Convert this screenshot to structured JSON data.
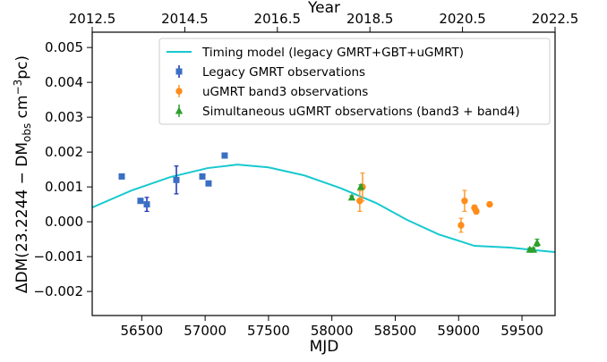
{
  "chart_data": {
    "type": "errorbar",
    "xlabel": "MJD",
    "x2label": "Year",
    "ylabel": {
      "pre": "ΔDM(23.2244 − DM",
      "sub": "obs",
      "mid": " cm",
      "sup": "−3",
      "post": "pc)"
    },
    "xlim": [
      56109,
      59761
    ],
    "xticks": [
      56500,
      57000,
      57500,
      58000,
      58500,
      59000,
      59500
    ],
    "x2lim": [
      2012.5,
      2022.5
    ],
    "x2ticks": [
      2012.5,
      2014.5,
      2016.5,
      2018.5,
      2020.5,
      2022.5
    ],
    "ylim": [
      -0.00269,
      0.00544
    ],
    "yticks": [
      {
        "value": -0.002,
        "label": "−0.002"
      },
      {
        "value": -0.001,
        "label": "−0.001"
      },
      {
        "value": 0,
        "label": "0.000"
      },
      {
        "value": 0.001,
        "label": "0.001"
      },
      {
        "value": 0.002,
        "label": "0.002"
      },
      {
        "value": 0.003,
        "label": "0.003"
      },
      {
        "value": 0.004,
        "label": "0.004"
      },
      {
        "value": 0.005,
        "label": "0.005"
      }
    ],
    "legend": "upper right",
    "series": [
      {
        "name": "Timing model (legacy GMRT+GBT+uGMRT)",
        "kind": "line",
        "color": "#17c9cf",
        "x": [
          56109,
          56420,
          56723,
          57020,
          57253,
          57500,
          57783,
          58065,
          58348,
          58595,
          58842,
          59124,
          59407,
          59618,
          59761
        ],
        "values": [
          0.00041,
          0.0009,
          0.00128,
          0.00154,
          0.00164,
          0.00156,
          0.00133,
          0.00097,
          0.00054,
          5e-05,
          -0.00036,
          -0.00069,
          -0.00074,
          -0.00082,
          -0.00087
        ]
      },
      {
        "name": "Legacy GMRT observations",
        "kind": "square",
        "color": "#3a6fc4",
        "ecolor": "#1a2fb0",
        "x": [
          56342,
          56490,
          56540,
          56773,
          56978,
          57027,
          57154
        ],
        "values": [
          0.0013,
          0.0006,
          0.0005,
          0.0012,
          0.0013,
          0.0011,
          0.0019
        ],
        "errors": [
          6e-05,
          7e-05,
          0.0002,
          0.0004,
          7e-05,
          6e-05,
          7e-05
        ]
      },
      {
        "name": "uGMRT band3 observations",
        "kind": "circle",
        "color": "#ff8c1a",
        "ecolor": "#ff9a2e",
        "x": [
          58220,
          58242,
          59019,
          59047,
          59125,
          59139,
          59245
        ],
        "values": [
          0.0006,
          0.001,
          -0.0001,
          0.0006,
          0.0004,
          0.0003,
          0.0005
        ],
        "errors": [
          0.0003,
          0.0004,
          0.0002,
          0.0003,
          8e-05,
          8e-05,
          6e-05
        ]
      },
      {
        "name": "Simultaneous uGMRT observations (band3 + band4)",
        "kind": "triangle",
        "color": "#2ca02c",
        "ecolor": "#2ca02c",
        "x": [
          58157,
          58228,
          59562,
          59590,
          59619
        ],
        "values": [
          0.0007,
          0.001,
          -0.0008,
          -0.0008,
          -0.0006
        ],
        "errors": [
          5e-05,
          6e-05,
          5e-05,
          5e-05,
          0.0001
        ]
      }
    ]
  }
}
